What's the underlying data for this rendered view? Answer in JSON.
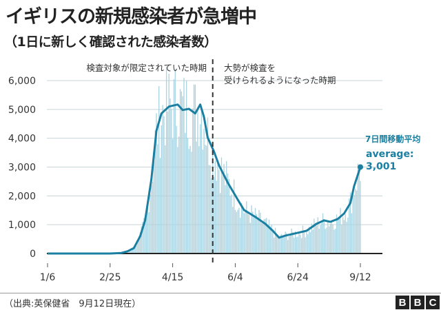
{
  "chart_data": {
    "type": "bar+line",
    "title": "イギリスの新規感染者が急増中",
    "subtitle": "（1日に新しく確認された感染者数）",
    "x_range": [
      "1/6",
      "9/12"
    ],
    "x_ticks": [
      "1/6",
      "2/25",
      "4/15",
      "6/4",
      "6/24",
      "9/12"
    ],
    "ylim": [
      0,
      6000
    ],
    "y_ticks": [
      "0",
      "1,000",
      "2,000",
      "3,000",
      "4,000",
      "5,000",
      "6,000"
    ],
    "y_tick_values": [
      0,
      1000,
      2000,
      3000,
      4000,
      5000,
      6000
    ],
    "grid": "horizontal",
    "annotations": {
      "left_period": "検査対象が限定されていた時期",
      "right_period_line1": "大勢が検査を",
      "right_period_line2": "受けられるようになった時期",
      "divider_date": "5/17",
      "series_label": "7日間移動平均",
      "average_label": "average:",
      "average_value": "3,001"
    },
    "series": [
      {
        "name": "7日間移動平均",
        "type": "line",
        "color": "#1a7fa0",
        "points": [
          [
            "1/6",
            0
          ],
          [
            "2/25",
            0
          ],
          [
            "3/5",
            20
          ],
          [
            "3/10",
            80
          ],
          [
            "3/15",
            190
          ],
          [
            "3/20",
            600
          ],
          [
            "3/24",
            1150
          ],
          [
            "3/29",
            2580
          ],
          [
            "4/2",
            4260
          ],
          [
            "4/6",
            4860
          ],
          [
            "4/12",
            5100
          ],
          [
            "4/19",
            5170
          ],
          [
            "4/23",
            4980
          ],
          [
            "4/28",
            5020
          ],
          [
            "5/3",
            4860
          ],
          [
            "5/7",
            5170
          ],
          [
            "5/10",
            4740
          ],
          [
            "5/13",
            4020
          ],
          [
            "5/18",
            3540
          ],
          [
            "5/22",
            3060
          ],
          [
            "5/29",
            2460
          ],
          [
            "6/6",
            1870
          ],
          [
            "6/11",
            1510
          ],
          [
            "6/20",
            1270
          ],
          [
            "6/28",
            1030
          ],
          [
            "7/4",
            790
          ],
          [
            "7/9",
            550
          ],
          [
            "7/14",
            620
          ],
          [
            "7/24",
            720
          ],
          [
            "7/31",
            790
          ],
          [
            "8/8",
            1030
          ],
          [
            "8/14",
            1150
          ],
          [
            "8/19",
            1100
          ],
          [
            "8/25",
            1200
          ],
          [
            "8/30",
            1390
          ],
          [
            "9/4",
            1750
          ],
          [
            "9/7",
            2340
          ],
          [
            "9/12",
            3001
          ]
        ]
      },
      {
        "name": "daily",
        "type": "bar",
        "color": "#a9d3e0"
      }
    ]
  },
  "footer": {
    "source": "（出典:英保健省　9月12日現在）",
    "logo": "BBC"
  }
}
